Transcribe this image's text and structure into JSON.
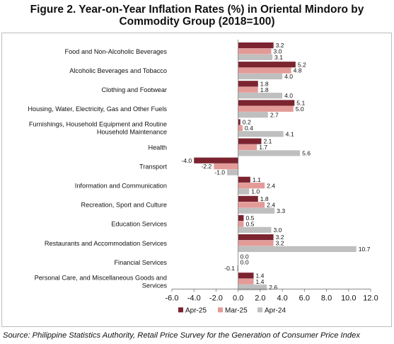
{
  "title_line1": "Figure 2. Year-on-Year Inflation Rates (%) in Oriental Mindoro by",
  "title_line2": "Commodity Group (2018=100)",
  "source": "Source: Philippine Statistics Authority, Retail Price Survey for the Generation of Consumer Price Index",
  "chart_data": {
    "type": "bar",
    "orientation": "horizontal",
    "categories": [
      [
        "Food and Non-Alcoholic Beverages"
      ],
      [
        "Alcoholic Beverages and Tobacco"
      ],
      [
        "Clothing and Footwear"
      ],
      [
        "Housing, Water, Electricity, Gas and Other Fuels"
      ],
      [
        "Furnishings, Household Equipment and Routine",
        "Household Maintenance"
      ],
      [
        "Health"
      ],
      [
        "Transport"
      ],
      [
        "Information and Communication"
      ],
      [
        "Recreation, Sport and Culture"
      ],
      [
        "Education Services"
      ],
      [
        "Restaurants and Accommodation Services"
      ],
      [
        "Financial Services"
      ],
      [
        "Personal Care, and Miscellaneous Goods and",
        "Services"
      ]
    ],
    "series": [
      {
        "name": "Apr-25",
        "color": "#7b2430",
        "values": [
          3.2,
          5.2,
          1.8,
          5.1,
          0.2,
          2.1,
          -4.0,
          1.1,
          1.8,
          0.5,
          3.2,
          0.0,
          1.4
        ],
        "labels": [
          "3.2",
          "5.2",
          "1.8",
          "5.1",
          "0.2",
          "2.1",
          "-4.0",
          "1.1",
          "1.8",
          "0.5",
          "3.2",
          "0.0",
          "1.4"
        ]
      },
      {
        "name": "Mar-25",
        "color": "#e39b98",
        "values": [
          3.0,
          4.8,
          1.8,
          5.0,
          0.4,
          1.7,
          -2.2,
          2.4,
          2.4,
          0.5,
          3.2,
          0.0,
          1.4
        ],
        "labels": [
          "3.0",
          "4.8",
          "1.8",
          "5.0",
          "0.4",
          "1.7",
          "-2.2",
          "2.4",
          "2.4",
          "0.5",
          "3.2",
          "0.0",
          "1.4"
        ]
      },
      {
        "name": "Apr-24",
        "color": "#bfbfbf",
        "values": [
          3.1,
          4.0,
          4.0,
          2.7,
          4.1,
          5.6,
          -1.0,
          1.0,
          3.3,
          3.0,
          10.7,
          -0.1,
          2.6
        ],
        "labels": [
          "3.1",
          "4.0",
          "4.0",
          "2.7",
          "4.1",
          "5.6",
          "-1.0",
          "1.0",
          "3.3",
          "3.0",
          "10.7",
          "-0.1",
          "2.6"
        ]
      }
    ],
    "xlim": [
      -6.0,
      12.0
    ],
    "xticks": [
      "-6.0",
      "-4.0",
      "-2.0",
      "0.0",
      "2.0",
      "4.0",
      "6.0",
      "8.0",
      "10.0",
      "12.0"
    ],
    "grid": false,
    "legend_position": "bottom"
  }
}
